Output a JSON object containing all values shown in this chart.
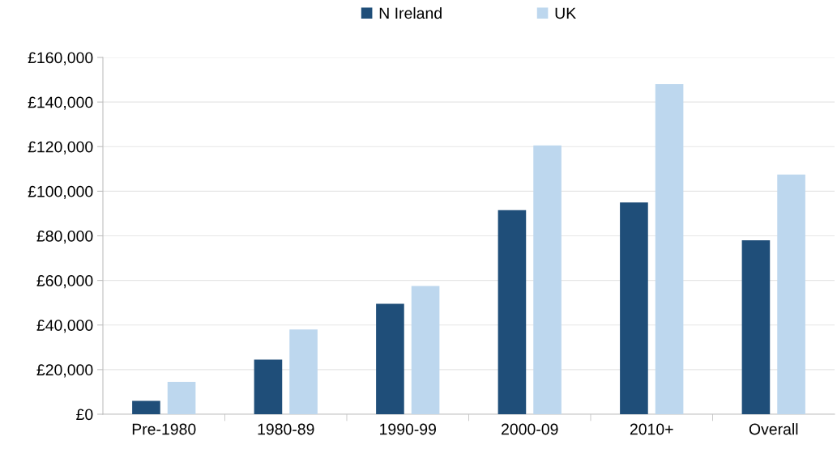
{
  "chart_data": {
    "type": "bar",
    "categories": [
      "Pre-1980",
      "1980-89",
      "1990-99",
      "2000-09",
      "2010+",
      "Overall"
    ],
    "series": [
      {
        "name": "N Ireland",
        "color": "#1f4e79",
        "values": [
          6000,
          24500,
          49500,
          91500,
          95000,
          78000
        ]
      },
      {
        "name": "UK",
        "color": "#bdd7ee",
        "values": [
          14500,
          38000,
          57500,
          120500,
          148000,
          107500
        ]
      }
    ],
    "ylim": [
      0,
      160000
    ],
    "yticks": [
      {
        "value": 0,
        "label": "£0"
      },
      {
        "value": 20000,
        "label": "£20,000"
      },
      {
        "value": 40000,
        "label": "£40,000"
      },
      {
        "value": 60000,
        "label": "£60,000"
      },
      {
        "value": 80000,
        "label": "£80,000"
      },
      {
        "value": 100000,
        "label": "£100,000"
      },
      {
        "value": 120000,
        "label": "£120,000"
      },
      {
        "value": 140000,
        "label": "£140,000"
      },
      {
        "value": 160000,
        "label": "£160,000"
      }
    ],
    "grid": "y",
    "legend": "top"
  }
}
